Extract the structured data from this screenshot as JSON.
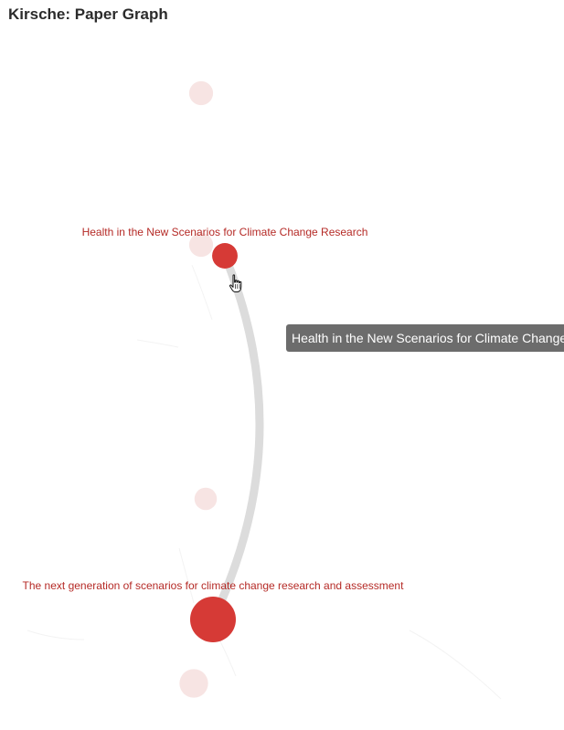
{
  "app": {
    "title": "Kirsche: Paper Graph"
  },
  "graph": {
    "nodes": [
      {
        "id": "bg-1",
        "label": "",
        "state": "faded",
        "importance": 0.3
      },
      {
        "id": "bg-2",
        "label": "",
        "state": "faded",
        "importance": 0.3
      },
      {
        "id": "bg-3",
        "label": "",
        "state": "faded",
        "importance": 0.25
      },
      {
        "id": "bg-4",
        "label": "",
        "state": "faded",
        "importance": 0.45
      },
      {
        "id": "paper-health",
        "label": "Health in the New Scenarios for Climate Change Research",
        "state": "highlighted",
        "importance": 0.35
      },
      {
        "id": "paper-next-gen",
        "label": "The next generation of scenarios for climate change research and assessment",
        "state": "highlighted",
        "importance": 1.0
      }
    ],
    "links": [
      {
        "source": "paper-health",
        "target": "paper-next-gen",
        "state": "highlighted"
      }
    ],
    "colors": {
      "highlight_node": "#d63a36",
      "faded_node": "#f7e4e3",
      "highlight_link": "#dcdcdc",
      "faded_link": "#f3f3f3",
      "label": "#b52a26",
      "tooltip_bg": "#6c6c6c",
      "tooltip_text": "#ffffff"
    }
  },
  "tooltip": {
    "text": "Health in the New Scenarios for Climate Change Research"
  },
  "cursor": {
    "icon": "hand-pointer-icon"
  }
}
